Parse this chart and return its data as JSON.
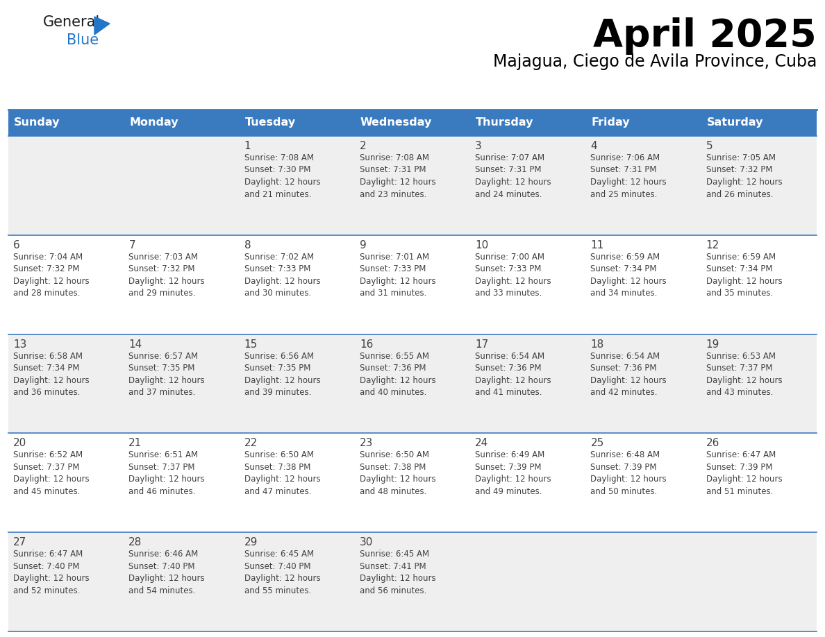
{
  "title": "April 2025",
  "subtitle": "Majagua, Ciego de Avila Province, Cuba",
  "header_bg": "#3a7abf",
  "header_text": "#ffffff",
  "row_bg_odd": "#efefef",
  "row_bg_even": "#ffffff",
  "border_color": "#3a7abf",
  "text_color": "#404040",
  "days_of_week": [
    "Sunday",
    "Monday",
    "Tuesday",
    "Wednesday",
    "Thursday",
    "Friday",
    "Saturday"
  ],
  "calendar": [
    [
      {
        "day": "",
        "info": ""
      },
      {
        "day": "",
        "info": ""
      },
      {
        "day": "1",
        "info": "Sunrise: 7:08 AM\nSunset: 7:30 PM\nDaylight: 12 hours\nand 21 minutes."
      },
      {
        "day": "2",
        "info": "Sunrise: 7:08 AM\nSunset: 7:31 PM\nDaylight: 12 hours\nand 23 minutes."
      },
      {
        "day": "3",
        "info": "Sunrise: 7:07 AM\nSunset: 7:31 PM\nDaylight: 12 hours\nand 24 minutes."
      },
      {
        "day": "4",
        "info": "Sunrise: 7:06 AM\nSunset: 7:31 PM\nDaylight: 12 hours\nand 25 minutes."
      },
      {
        "day": "5",
        "info": "Sunrise: 7:05 AM\nSunset: 7:32 PM\nDaylight: 12 hours\nand 26 minutes."
      }
    ],
    [
      {
        "day": "6",
        "info": "Sunrise: 7:04 AM\nSunset: 7:32 PM\nDaylight: 12 hours\nand 28 minutes."
      },
      {
        "day": "7",
        "info": "Sunrise: 7:03 AM\nSunset: 7:32 PM\nDaylight: 12 hours\nand 29 minutes."
      },
      {
        "day": "8",
        "info": "Sunrise: 7:02 AM\nSunset: 7:33 PM\nDaylight: 12 hours\nand 30 minutes."
      },
      {
        "day": "9",
        "info": "Sunrise: 7:01 AM\nSunset: 7:33 PM\nDaylight: 12 hours\nand 31 minutes."
      },
      {
        "day": "10",
        "info": "Sunrise: 7:00 AM\nSunset: 7:33 PM\nDaylight: 12 hours\nand 33 minutes."
      },
      {
        "day": "11",
        "info": "Sunrise: 6:59 AM\nSunset: 7:34 PM\nDaylight: 12 hours\nand 34 minutes."
      },
      {
        "day": "12",
        "info": "Sunrise: 6:59 AM\nSunset: 7:34 PM\nDaylight: 12 hours\nand 35 minutes."
      }
    ],
    [
      {
        "day": "13",
        "info": "Sunrise: 6:58 AM\nSunset: 7:34 PM\nDaylight: 12 hours\nand 36 minutes."
      },
      {
        "day": "14",
        "info": "Sunrise: 6:57 AM\nSunset: 7:35 PM\nDaylight: 12 hours\nand 37 minutes."
      },
      {
        "day": "15",
        "info": "Sunrise: 6:56 AM\nSunset: 7:35 PM\nDaylight: 12 hours\nand 39 minutes."
      },
      {
        "day": "16",
        "info": "Sunrise: 6:55 AM\nSunset: 7:36 PM\nDaylight: 12 hours\nand 40 minutes."
      },
      {
        "day": "17",
        "info": "Sunrise: 6:54 AM\nSunset: 7:36 PM\nDaylight: 12 hours\nand 41 minutes."
      },
      {
        "day": "18",
        "info": "Sunrise: 6:54 AM\nSunset: 7:36 PM\nDaylight: 12 hours\nand 42 minutes."
      },
      {
        "day": "19",
        "info": "Sunrise: 6:53 AM\nSunset: 7:37 PM\nDaylight: 12 hours\nand 43 minutes."
      }
    ],
    [
      {
        "day": "20",
        "info": "Sunrise: 6:52 AM\nSunset: 7:37 PM\nDaylight: 12 hours\nand 45 minutes."
      },
      {
        "day": "21",
        "info": "Sunrise: 6:51 AM\nSunset: 7:37 PM\nDaylight: 12 hours\nand 46 minutes."
      },
      {
        "day": "22",
        "info": "Sunrise: 6:50 AM\nSunset: 7:38 PM\nDaylight: 12 hours\nand 47 minutes."
      },
      {
        "day": "23",
        "info": "Sunrise: 6:50 AM\nSunset: 7:38 PM\nDaylight: 12 hours\nand 48 minutes."
      },
      {
        "day": "24",
        "info": "Sunrise: 6:49 AM\nSunset: 7:39 PM\nDaylight: 12 hours\nand 49 minutes."
      },
      {
        "day": "25",
        "info": "Sunrise: 6:48 AM\nSunset: 7:39 PM\nDaylight: 12 hours\nand 50 minutes."
      },
      {
        "day": "26",
        "info": "Sunrise: 6:47 AM\nSunset: 7:39 PM\nDaylight: 12 hours\nand 51 minutes."
      }
    ],
    [
      {
        "day": "27",
        "info": "Sunrise: 6:47 AM\nSunset: 7:40 PM\nDaylight: 12 hours\nand 52 minutes."
      },
      {
        "day": "28",
        "info": "Sunrise: 6:46 AM\nSunset: 7:40 PM\nDaylight: 12 hours\nand 54 minutes."
      },
      {
        "day": "29",
        "info": "Sunrise: 6:45 AM\nSunset: 7:40 PM\nDaylight: 12 hours\nand 55 minutes."
      },
      {
        "day": "30",
        "info": "Sunrise: 6:45 AM\nSunset: 7:41 PM\nDaylight: 12 hours\nand 56 minutes."
      },
      {
        "day": "",
        "info": ""
      },
      {
        "day": "",
        "info": ""
      },
      {
        "day": "",
        "info": ""
      }
    ]
  ],
  "logo_general_color": "#1a1a1a",
  "logo_blue_color": "#2176c7",
  "logo_triangle_color": "#2176c7",
  "title_fontsize": 40,
  "subtitle_fontsize": 17,
  "day_name_fontsize": 11.5,
  "day_num_fontsize": 11,
  "info_fontsize": 8.5
}
